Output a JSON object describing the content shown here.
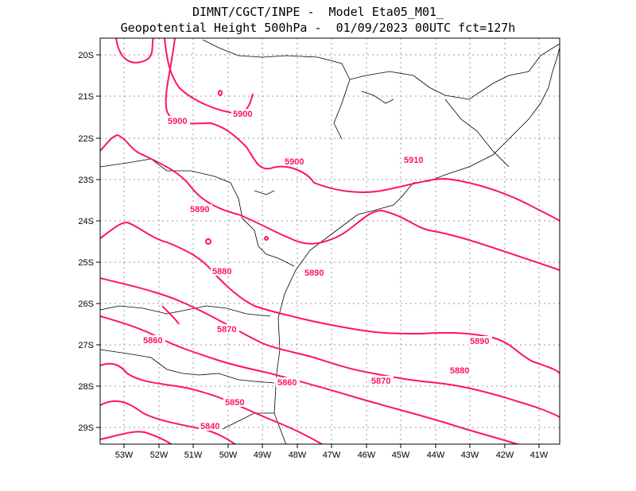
{
  "title": {
    "line1": "DIMNT/CGCT/INPE -  Model Eta05_M01_",
    "line2": "Geopotential Height 500hPa -  01/09/2023 00UTC fct=127h"
  },
  "axes": {
    "lon_labels": [
      "53W",
      "52W",
      "51W",
      "50W",
      "49W",
      "48W",
      "47W",
      "46W",
      "45W",
      "44W",
      "43W",
      "42W",
      "41W"
    ],
    "lat_labels": [
      "20S",
      "21S",
      "22S",
      "23S",
      "24S",
      "25S",
      "26S",
      "27S",
      "28S",
      "29S"
    ]
  },
  "colors": {
    "contour": "#ff1461",
    "coast": "#000000",
    "grid": "#9a9a9a"
  },
  "contour_labels": [
    {
      "text": "5900"
    },
    {
      "text": "5900"
    },
    {
      "text": "5900"
    },
    {
      "text": "5910"
    },
    {
      "text": "5890"
    },
    {
      "text": "5890"
    },
    {
      "text": "5890"
    },
    {
      "text": "5880"
    },
    {
      "text": "5880"
    },
    {
      "text": "5870"
    },
    {
      "text": "5870"
    },
    {
      "text": "5860"
    },
    {
      "text": "5860"
    },
    {
      "text": "5850"
    },
    {
      "text": "5840"
    }
  ]
}
